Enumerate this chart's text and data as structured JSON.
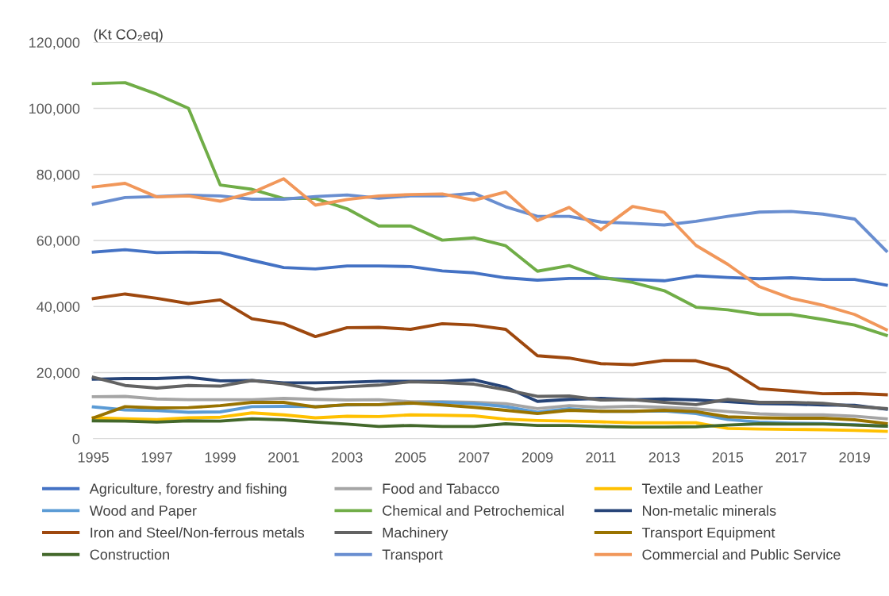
{
  "chart_data": {
    "type": "line",
    "ylabel": "(Kt CO₂eq)",
    "x": [
      1995,
      1996,
      1997,
      1998,
      1999,
      2000,
      2001,
      2002,
      2003,
      2004,
      2005,
      2006,
      2007,
      2008,
      2009,
      2010,
      2011,
      2012,
      2013,
      2014,
      2015,
      2016,
      2017,
      2018,
      2019,
      2020
    ],
    "xlim": [
      1995,
      2020
    ],
    "xticks": [
      1995,
      1997,
      1999,
      2001,
      2003,
      2005,
      2007,
      2009,
      2011,
      2013,
      2015,
      2017,
      2019
    ],
    "ylim": [
      0,
      120000
    ],
    "yticks": [
      {
        "value": 0,
        "label": "0"
      },
      {
        "value": 20000,
        "label": "20,000"
      },
      {
        "value": 40000,
        "label": "40,000"
      },
      {
        "value": 60000,
        "label": "60,000"
      },
      {
        "value": 80000,
        "label": "80,000"
      },
      {
        "value": 100000,
        "label": "100,000"
      },
      {
        "value": 120000,
        "label": "120,000"
      }
    ],
    "grid": "y",
    "legend": "bottom",
    "marker": "none",
    "line_style": "solid",
    "series": [
      {
        "name": "Agriculture, forestry and fishing",
        "color": "#4472c4",
        "values": [
          56500,
          57200,
          56300,
          56500,
          56300,
          54000,
          51800,
          51400,
          52300,
          52300,
          52100,
          50800,
          50200,
          48700,
          48000,
          48500,
          48500,
          48200,
          47800,
          49300,
          48800,
          48400,
          48700,
          48200,
          48200,
          46500
        ]
      },
      {
        "name": "Food and Tabacco",
        "color": "#a5a5a5",
        "values": [
          12700,
          12800,
          12000,
          11800,
          11800,
          11800,
          12200,
          11900,
          11700,
          11800,
          11200,
          11200,
          11000,
          10600,
          9100,
          10000,
          9500,
          9800,
          9500,
          9000,
          8200,
          7500,
          7200,
          7200,
          6800,
          6000
        ]
      },
      {
        "name": "Textile and Leather",
        "color": "#ffc000",
        "values": [
          6300,
          6000,
          5800,
          6300,
          6500,
          7800,
          7200,
          6300,
          6800,
          6700,
          7200,
          7100,
          6900,
          5900,
          5500,
          5300,
          5100,
          4800,
          4800,
          4800,
          3100,
          2900,
          2800,
          2700,
          2500,
          2200
        ]
      },
      {
        "name": "Wood and Paper",
        "color": "#5b9bd5",
        "values": [
          9600,
          8700,
          8500,
          8000,
          8100,
          9700,
          9800,
          9700,
          10200,
          10300,
          10700,
          11000,
          10600,
          9700,
          8000,
          9100,
          8300,
          8300,
          8400,
          7600,
          5800,
          5000,
          4700,
          4600,
          4200,
          3800
        ]
      },
      {
        "name": "Chemical and Petrochemical",
        "color": "#70ad47",
        "values": [
          107500,
          107800,
          104300,
          100000,
          76800,
          75500,
          72700,
          72700,
          69600,
          64400,
          64400,
          60100,
          60800,
          58400,
          50700,
          52400,
          48900,
          47300,
          44800,
          39800,
          39000,
          37600,
          37600,
          36100,
          34400,
          31300
        ]
      },
      {
        "name": "Non-metalic minerals",
        "color": "#264478",
        "values": [
          18000,
          18200,
          18200,
          18600,
          17500,
          17600,
          16900,
          16900,
          17100,
          17400,
          17400,
          17400,
          17800,
          15600,
          11300,
          11900,
          12200,
          11800,
          12000,
          11700,
          11200,
          10600,
          10500,
          10200,
          10100,
          8900
        ]
      },
      {
        "name": "Iron and Steel/Non-ferrous metals",
        "color": "#9e480e",
        "values": [
          42400,
          43800,
          42500,
          40900,
          42000,
          36300,
          34800,
          30900,
          33600,
          33700,
          33100,
          34800,
          34400,
          33100,
          25100,
          24400,
          22700,
          22400,
          23700,
          23600,
          21100,
          15100,
          14400,
          13600,
          13700,
          13300
        ]
      },
      {
        "name": "Machinery",
        "color": "#636363",
        "values": [
          18600,
          16100,
          15300,
          16100,
          15900,
          17600,
          16600,
          14900,
          15700,
          16200,
          17200,
          17000,
          16500,
          14800,
          12800,
          12900,
          11700,
          11800,
          11000,
          10300,
          11900,
          11000,
          11000,
          10700,
          9800,
          9100
        ]
      },
      {
        "name": "Transport Equipment",
        "color": "#997300",
        "values": [
          6300,
          9700,
          9300,
          9400,
          10000,
          11000,
          11000,
          9600,
          10300,
          10300,
          10800,
          10200,
          9500,
          8600,
          7600,
          8600,
          8300,
          8300,
          8600,
          8200,
          6600,
          6300,
          6200,
          6200,
          5700,
          4600
        ]
      },
      {
        "name": "Construction",
        "color": "#43682b",
        "values": [
          5400,
          5300,
          5000,
          5400,
          5300,
          6000,
          5700,
          5000,
          4400,
          3700,
          4000,
          3700,
          3700,
          4500,
          4000,
          4000,
          3700,
          3500,
          3500,
          3600,
          4100,
          4500,
          4400,
          4400,
          4100,
          3800
        ]
      },
      {
        "name": "Transport",
        "color": "#698ed0",
        "values": [
          71000,
          73000,
          73300,
          73700,
          73500,
          72500,
          72500,
          73300,
          73800,
          72800,
          73500,
          73500,
          74300,
          70200,
          67300,
          67300,
          65600,
          65200,
          64700,
          65800,
          67300,
          68600,
          68800,
          68000,
          66500,
          56800
        ]
      },
      {
        "name": "Commercial and Public Service",
        "color": "#f1975a",
        "values": [
          76200,
          77300,
          73200,
          73500,
          71900,
          74500,
          78700,
          70700,
          72400,
          73500,
          73900,
          74100,
          72200,
          74700,
          66000,
          70000,
          63200,
          70300,
          68500,
          58500,
          52800,
          46000,
          42500,
          40400,
          37600,
          33000
        ]
      }
    ]
  }
}
